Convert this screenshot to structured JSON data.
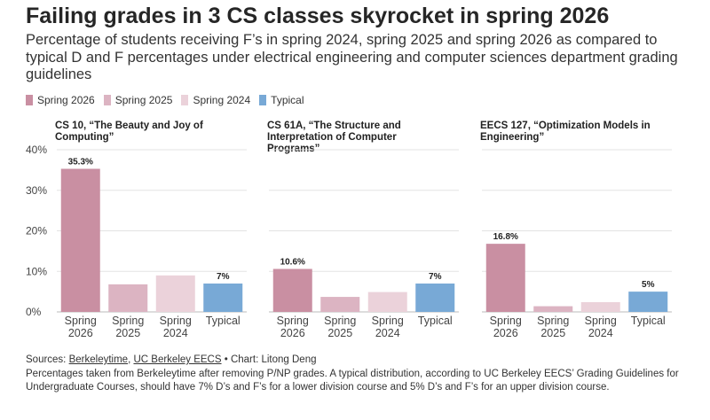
{
  "header": {
    "title": "Failing grades in 3 CS classes skyrocket in spring 2026",
    "subtitle": "Percentage of students receiving F’s in spring 2024, spring 2025 and spring 2026 as compared to typical D and F percentages under electrical engineering and computer sciences department grading guidelines"
  },
  "legend": [
    {
      "label": "Spring 2026",
      "color": "#c98fa2"
    },
    {
      "label": "Spring 2025",
      "color": "#dcb4c2"
    },
    {
      "label": "Spring 2024",
      "color": "#ebd2da"
    },
    {
      "label": "Typical",
      "color": "#78a9d6"
    }
  ],
  "chart_data": [
    {
      "type": "bar",
      "title": "CS 10, “The Beauty and Joy of Computing”",
      "categories": [
        "Spring 2026",
        "Spring 2025",
        "Spring 2024",
        "Typical"
      ],
      "values": [
        35.3,
        6.8,
        9.0,
        7.0
      ],
      "data_labels": [
        "35.3%",
        "",
        "",
        "7%"
      ],
      "ylim": [
        0,
        40
      ],
      "yticks": [
        "0%",
        "10%",
        "20%",
        "30%",
        "40%"
      ],
      "grid": true
    },
    {
      "type": "bar",
      "title": "CS 61A, “The Structure and Interpretation of Computer Programs”",
      "categories": [
        "Spring 2026",
        "Spring 2025",
        "Spring 2024",
        "Typical"
      ],
      "values": [
        10.6,
        3.7,
        4.9,
        7.0
      ],
      "data_labels": [
        "10.6%",
        "",
        "",
        "7%"
      ],
      "ylim": [
        0,
        40
      ],
      "grid": true
    },
    {
      "type": "bar",
      "title": "EECS 127, “Optimization Models in Engineering”",
      "categories": [
        "Spring 2026",
        "Spring 2025",
        "Spring 2024",
        "Typical"
      ],
      "values": [
        16.8,
        1.4,
        2.4,
        5.0
      ],
      "data_labels": [
        "16.8%",
        "",
        "",
        "5%"
      ],
      "ylim": [
        0,
        40
      ],
      "grid": true
    }
  ],
  "footer": {
    "sources_label": "Sources:",
    "source1": "Berkeleytime",
    "separator": ",",
    "source2": "UC Berkeley EECS",
    "chart_credit": " • Chart: Litong Deng",
    "note": "Percentages taken from Berkeleytime after removing P/NP grades. A typical distribution, according to UC Berkeley EECS’ Grading Guidelines for Undergraduate Courses, should have 7% D’s and F’s for a lower division course and 5% D’s and F’s for an upper division course."
  }
}
